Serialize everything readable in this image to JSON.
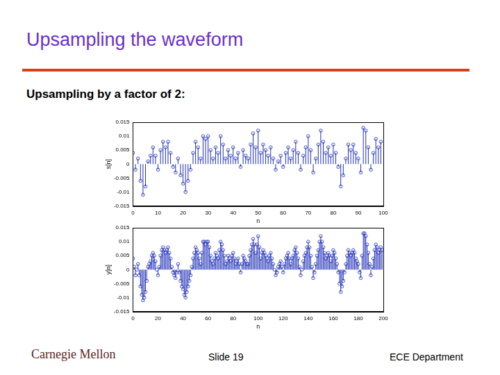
{
  "header": {
    "title": "Upsampling the waveform",
    "subtitle": "Upsampling by a factor of 2:"
  },
  "footer": {
    "logo": "Carnegie Mellon",
    "slide": "Slide 19",
    "department": "ECE Department"
  },
  "chart_data": [
    {
      "type": "stem",
      "x_label": "n",
      "y_label": "s[n]",
      "grid": false,
      "xlim": [
        0,
        100
      ],
      "xticks": [
        0,
        10,
        20,
        30,
        40,
        50,
        60,
        70,
        80,
        90,
        100
      ],
      "ylim": [
        -0.015,
        0.015
      ],
      "yticks": [
        -0.015,
        -0.01,
        -0.005,
        0,
        0.005,
        0.01,
        0.015
      ],
      "series": [
        {
          "color": "#1f2fb8",
          "marker": "circle",
          "x": [
            0,
            1,
            2,
            3,
            4,
            5,
            6,
            7,
            8,
            9,
            10,
            11,
            12,
            13,
            14,
            15,
            16,
            17,
            18,
            19,
            20,
            21,
            22,
            23,
            24,
            25,
            26,
            27,
            28,
            29,
            30,
            31,
            32,
            33,
            34,
            35,
            36,
            37,
            38,
            39,
            40,
            41,
            42,
            43,
            44,
            45,
            46,
            47,
            48,
            49,
            50,
            51,
            52,
            53,
            54,
            55,
            56,
            57,
            58,
            59,
            60,
            61,
            62,
            63,
            64,
            65,
            66,
            67,
            68,
            69,
            70,
            71,
            72,
            73,
            74,
            75,
            76,
            77,
            78,
            79,
            80,
            81,
            82,
            83,
            84,
            85,
            86,
            87,
            88,
            89,
            90,
            91,
            92,
            93,
            94,
            95,
            96,
            97,
            98,
            99
          ],
          "values": [
            0.004,
            -0.002,
            0.002,
            -0.006,
            -0.011,
            -0.008,
            0.001,
            0.003,
            0.006,
            0.003,
            -0.002,
            0.005,
            0.008,
            0.006,
            0.008,
            0.004,
            -0.001,
            -0.003,
            0.002,
            -0.004,
            -0.007,
            -0.01,
            -0.006,
            -0.002,
            0.004,
            0.008,
            0.006,
            0.002,
            0.01,
            0.009,
            0.01,
            0.005,
            0.002,
            0.006,
            0.004,
            0.01,
            0.007,
            0.002,
            0.005,
            0.003,
            0.006,
            0.002,
            0.004,
            -0.001,
            0.005,
            0.003,
            0.002,
            0.007,
            0.011,
            0.006,
            0.012,
            0.004,
            0.007,
            0.005,
            0.003,
            0.006,
            0.002,
            -0.002,
            0.001,
            0.003,
            -0.001,
            0.004,
            0.006,
            0.002,
            0.005,
            0.008,
            0.004,
            -0.002,
            0.003,
            0.006,
            0.01,
            0.005,
            -0.003,
            0.002,
            0.007,
            0.012,
            0.008,
            0.004,
            0.006,
            0.003,
            0.007,
            0.004,
            -0.001,
            -0.008,
            -0.004,
            0.002,
            0.007,
            0.005,
            0.007,
            0.004,
            0.002,
            -0.003,
            0.013,
            0.012,
            0.006,
            -0.002,
            0.004,
            0.009,
            0.006,
            0.008
          ]
        }
      ]
    },
    {
      "type": "stem",
      "x_label": "n",
      "y_label": "y[n]",
      "grid": false,
      "xlim": [
        0,
        200
      ],
      "xticks": [
        0,
        20,
        40,
        60,
        80,
        100,
        120,
        140,
        160,
        180,
        200
      ],
      "ylim": [
        -0.015,
        0.015
      ],
      "yticks": [
        -0.015,
        -0.01,
        -0.005,
        0,
        0.005,
        0.01,
        0.015
      ],
      "series": [
        {
          "color": "#1f2fb8",
          "marker": "circle",
          "x": [
            0,
            1,
            2,
            3,
            4,
            5,
            6,
            7,
            8,
            9,
            10,
            11,
            12,
            13,
            14,
            15,
            16,
            17,
            18,
            19,
            20,
            21,
            22,
            23,
            24,
            25,
            26,
            27,
            28,
            29,
            30,
            31,
            32,
            33,
            34,
            35,
            36,
            37,
            38,
            39,
            40,
            41,
            42,
            43,
            44,
            45,
            46,
            47,
            48,
            49,
            50,
            51,
            52,
            53,
            54,
            55,
            56,
            57,
            58,
            59,
            60,
            61,
            62,
            63,
            64,
            65,
            66,
            67,
            68,
            69,
            70,
            71,
            72,
            73,
            74,
            75,
            76,
            77,
            78,
            79,
            80,
            81,
            82,
            83,
            84,
            85,
            86,
            87,
            88,
            89,
            90,
            91,
            92,
            93,
            94,
            95,
            96,
            97,
            98,
            99,
            100,
            101,
            102,
            103,
            104,
            105,
            106,
            107,
            108,
            109,
            110,
            111,
            112,
            113,
            114,
            115,
            116,
            117,
            118,
            119,
            120,
            121,
            122,
            123,
            124,
            125,
            126,
            127,
            128,
            129,
            130,
            131,
            132,
            133,
            134,
            135,
            136,
            137,
            138,
            139,
            140,
            141,
            142,
            143,
            144,
            145,
            146,
            147,
            148,
            149,
            150,
            151,
            152,
            153,
            154,
            155,
            156,
            157,
            158,
            159,
            160,
            161,
            162,
            163,
            164,
            165,
            166,
            167,
            168,
            169,
            170,
            171,
            172,
            173,
            174,
            175,
            176,
            177,
            178,
            179,
            180,
            181,
            182,
            183,
            184,
            185,
            186,
            187,
            188,
            189,
            190,
            191,
            192,
            193,
            194,
            195,
            196,
            197,
            198,
            199
          ],
          "values": [
            0.004,
            0.001,
            -0.002,
            0.0,
            0.002,
            -0.002,
            -0.006,
            -0.009,
            -0.011,
            -0.01,
            -0.008,
            -0.004,
            0.001,
            0.002,
            0.003,
            0.005,
            0.006,
            0.005,
            0.003,
            0.0,
            -0.002,
            0.001,
            0.005,
            0.007,
            0.008,
            0.007,
            0.006,
            0.007,
            0.008,
            0.006,
            0.004,
            0.001,
            -0.001,
            -0.002,
            -0.003,
            -0.001,
            0.002,
            -0.001,
            -0.004,
            -0.006,
            -0.007,
            -0.009,
            -0.01,
            -0.008,
            -0.006,
            -0.004,
            -0.002,
            0.001,
            0.004,
            0.006,
            0.008,
            0.007,
            0.006,
            0.004,
            0.002,
            0.006,
            0.01,
            0.01,
            0.009,
            0.01,
            0.01,
            0.008,
            0.005,
            0.003,
            0.002,
            0.004,
            0.006,
            0.005,
            0.004,
            0.007,
            0.01,
            0.009,
            0.007,
            0.005,
            0.002,
            0.003,
            0.005,
            0.004,
            0.003,
            0.005,
            0.006,
            0.004,
            0.002,
            0.003,
            0.004,
            0.002,
            -0.001,
            0.002,
            0.005,
            0.004,
            0.003,
            0.002,
            0.002,
            0.005,
            0.007,
            0.009,
            0.011,
            0.009,
            0.006,
            0.009,
            0.012,
            0.008,
            0.004,
            0.006,
            0.007,
            0.006,
            0.005,
            0.004,
            0.003,
            0.005,
            0.006,
            0.004,
            0.002,
            0.0,
            -0.002,
            -0.001,
            0.001,
            0.002,
            0.003,
            0.001,
            -0.001,
            0.002,
            0.004,
            0.005,
            0.006,
            0.004,
            0.002,
            0.004,
            0.005,
            0.007,
            0.008,
            0.006,
            0.004,
            0.001,
            -0.002,
            0.0,
            0.003,
            0.005,
            0.006,
            0.008,
            0.01,
            0.008,
            0.005,
            0.001,
            -0.003,
            -0.001,
            0.002,
            0.005,
            0.007,
            0.01,
            0.012,
            0.01,
            0.008,
            0.006,
            0.004,
            0.005,
            0.006,
            0.005,
            0.003,
            0.005,
            0.007,
            0.006,
            0.004,
            0.002,
            -0.001,
            -0.005,
            -0.008,
            -0.006,
            -0.004,
            -0.001,
            0.002,
            0.005,
            0.007,
            0.006,
            0.005,
            0.006,
            0.007,
            0.006,
            0.004,
            0.003,
            0.002,
            -0.001,
            -0.003,
            0.005,
            0.013,
            0.013,
            0.012,
            0.009,
            0.006,
            0.002,
            -0.002,
            0.001,
            0.004,
            0.007,
            0.009,
            0.008,
            0.006,
            0.007,
            0.008,
            0.007
          ]
        }
      ]
    }
  ]
}
